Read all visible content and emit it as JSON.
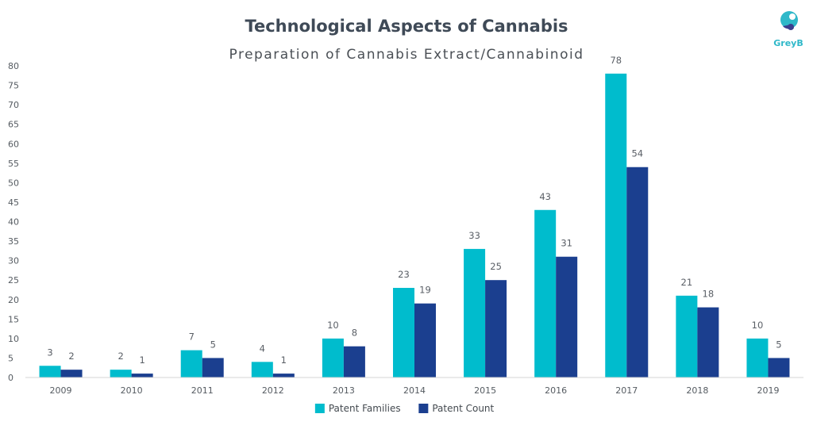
{
  "chart_data": {
    "type": "bar",
    "title": "Technological Aspects of Cannabis",
    "subtitle": "Preparation of Cannabis Extract/Cannabinoid",
    "xlabel": "",
    "ylabel": "",
    "categories": [
      "2009",
      "2010",
      "2011",
      "2012",
      "2013",
      "2014",
      "2015",
      "2016",
      "2017",
      "2018",
      "2019"
    ],
    "series": [
      {
        "name": "Patent Families",
        "color": "#00bccd",
        "values": [
          3,
          2,
          7,
          4,
          10,
          23,
          33,
          43,
          78,
          21,
          10
        ]
      },
      {
        "name": "Patent Count",
        "color": "#1b3f8f",
        "values": [
          2,
          1,
          5,
          1,
          8,
          19,
          25,
          31,
          54,
          18,
          5
        ]
      }
    ],
    "ylim": [
      0,
      80
    ],
    "yticks": [
      0,
      5,
      10,
      15,
      20,
      25,
      30,
      35,
      40,
      45,
      50,
      55,
      60,
      65,
      70,
      75,
      80
    ],
    "grid": false,
    "legend_position": "bottom-center",
    "data_labels": true
  },
  "logo": {
    "text": "GreyB",
    "icon": "greyb-logo-icon"
  }
}
